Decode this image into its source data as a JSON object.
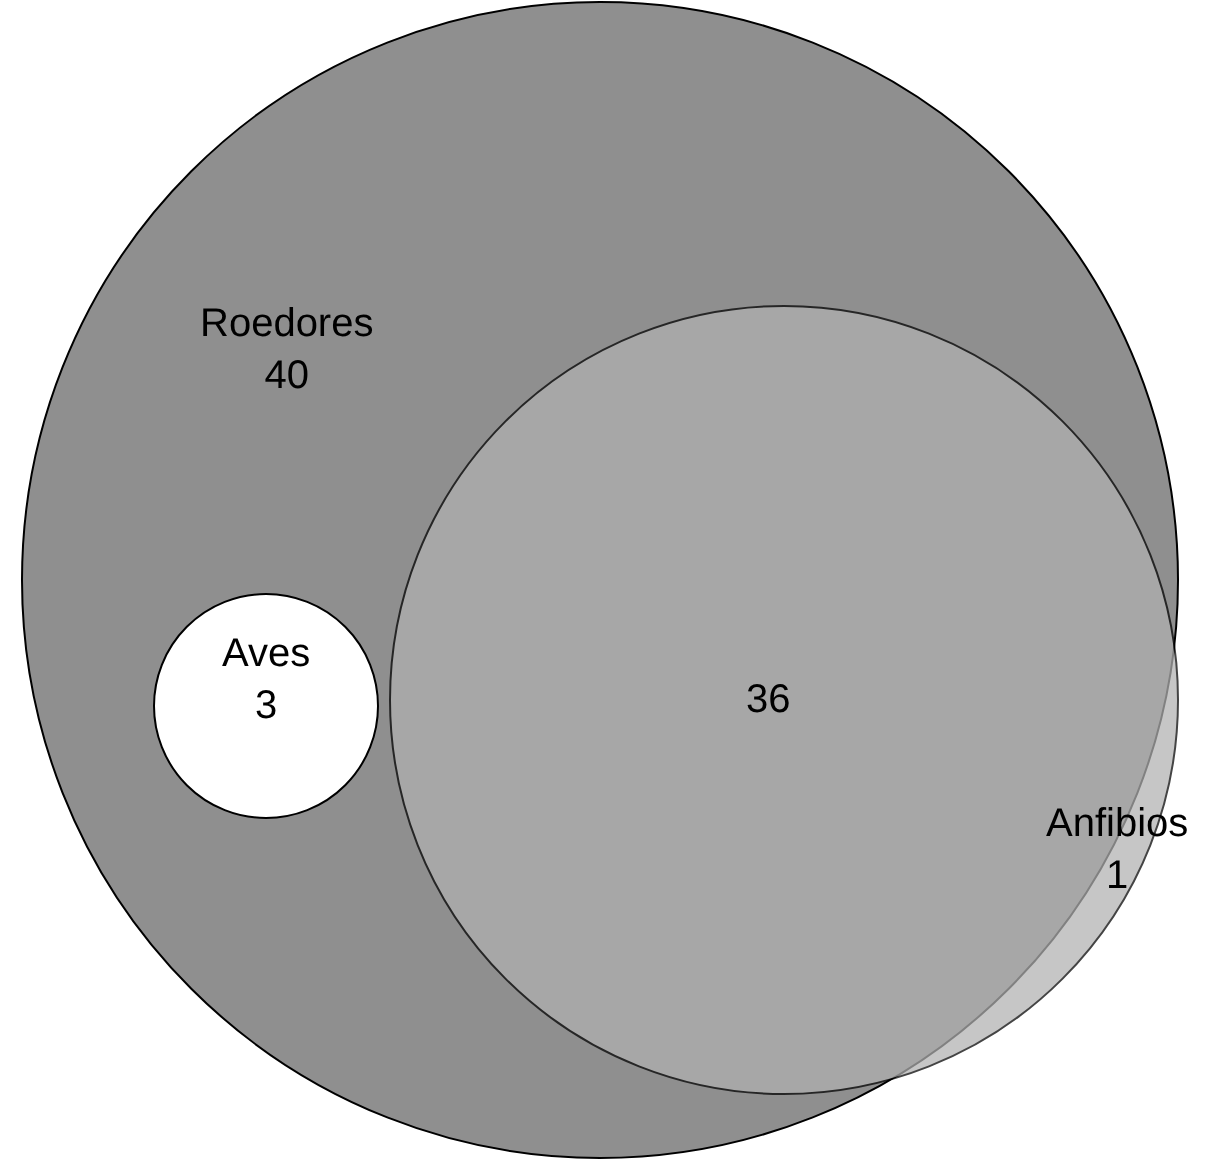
{
  "chart_data": {
    "type": "other",
    "categories": [
      "Roedores",
      "Aves",
      "Anfibios"
    ],
    "values": [
      40,
      3,
      1
    ],
    "colors": [
      "#8f8f8f",
      "#ffffff",
      "#b1b1b1"
    ],
    "data_labels": true,
    "annotations": [
      "36"
    ]
  }
}
